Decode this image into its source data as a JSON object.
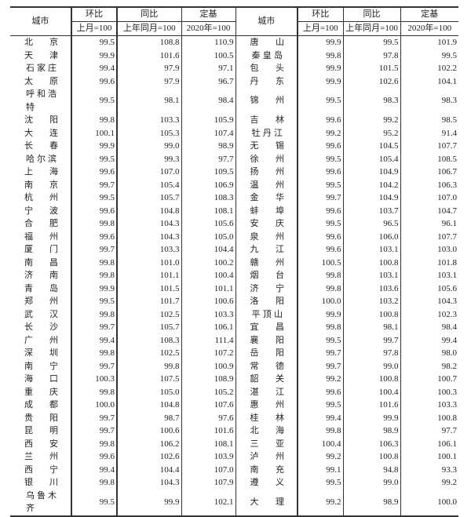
{
  "header": {
    "city": "城市",
    "mom": "环比",
    "yoy": "同比",
    "base": "定基",
    "mom_sub": "上月=100",
    "yoy_sub": "上年同月=100",
    "base_sub": "2020年=100"
  },
  "left_rows": [
    [
      "北京",
      "99.5",
      "108.8",
      "110.9"
    ],
    [
      "天津",
      "99.9",
      "101.6",
      "100.5"
    ],
    [
      "石家庄",
      "99.4",
      "97.9",
      "97.1"
    ],
    [
      "太原",
      "99.6",
      "97.9",
      "96.7"
    ],
    [
      "呼和浩特",
      "99.5",
      "98.1",
      "98.4"
    ],
    [
      "沈阳",
      "99.8",
      "103.3",
      "105.9"
    ],
    [
      "大连",
      "100.1",
      "105.3",
      "107.4"
    ],
    [
      "长春",
      "99.9",
      "99.0",
      "98.9"
    ],
    [
      "哈尔滨",
      "99.5",
      "99.3",
      "97.7"
    ],
    [
      "上海",
      "99.6",
      "107.0",
      "109.5"
    ],
    [
      "南京",
      "99.7",
      "105.4",
      "106.9"
    ],
    [
      "杭州",
      "99.5",
      "105.7",
      "108.3"
    ],
    [
      "宁波",
      "99.6",
      "104.8",
      "108.1"
    ],
    [
      "合肥",
      "99.8",
      "104.3",
      "105.6"
    ],
    [
      "福州",
      "99.6",
      "104.3",
      "105.0"
    ],
    [
      "厦门",
      "99.7",
      "103.3",
      "104.4"
    ],
    [
      "南昌",
      "99.8",
      "101.0",
      "100.2"
    ],
    [
      "济南",
      "99.8",
      "101.1",
      "100.4"
    ],
    [
      "青岛",
      "99.9",
      "101.5",
      "101.1"
    ],
    [
      "郑州",
      "99.5",
      "101.7",
      "100.6"
    ],
    [
      "武汉",
      "99.8",
      "102.5",
      "103.3"
    ],
    [
      "长沙",
      "99.7",
      "105.7",
      "106.1"
    ],
    [
      "广州",
      "99.4",
      "108.3",
      "111.4"
    ],
    [
      "深圳",
      "99.8",
      "102.5",
      "107.2"
    ],
    [
      "南宁",
      "99.7",
      "99.8",
      "100.9"
    ],
    [
      "海口",
      "100.3",
      "107.5",
      "108.9"
    ],
    [
      "重庆",
      "99.8",
      "105.0",
      "105.2"
    ],
    [
      "成都",
      "100.0",
      "104.8",
      "107.6"
    ],
    [
      "贵阳",
      "99.7",
      "98.7",
      "97.6"
    ],
    [
      "昆明",
      "99.7",
      "100.6",
      "101.6"
    ],
    [
      "西安",
      "99.8",
      "106.2",
      "108.1"
    ],
    [
      "兰州",
      "99.6",
      "102.6",
      "103.9"
    ],
    [
      "西宁",
      "99.4",
      "104.4",
      "107.0"
    ],
    [
      "银川",
      "99.8",
      "104.3",
      "107.9"
    ],
    [
      "乌鲁木齐",
      "99.5",
      "99.9",
      "102.1"
    ]
  ],
  "right_rows": [
    [
      "唐山",
      "99.9",
      "99.5",
      "101.9"
    ],
    [
      "秦皇岛",
      "99.8",
      "97.8",
      "99.5"
    ],
    [
      "包头",
      "99.9",
      "101.5",
      "102.2"
    ],
    [
      "丹东",
      "99.9",
      "102.6",
      "104.1"
    ],
    [
      "锦州",
      "99.5",
      "98.3",
      "98.3"
    ],
    [
      "吉林",
      "99.6",
      "99.2",
      "98.5"
    ],
    [
      "牡丹江",
      "99.2",
      "95.2",
      "91.4"
    ],
    [
      "无锡",
      "99.6",
      "104.5",
      "107.7"
    ],
    [
      "徐州",
      "99.5",
      "105.4",
      "108.5"
    ],
    [
      "扬州",
      "99.6",
      "104.9",
      "106.7"
    ],
    [
      "温州",
      "99.5",
      "104.2",
      "106.3"
    ],
    [
      "金华",
      "99.7",
      "104.9",
      "107.0"
    ],
    [
      "蚌埠",
      "99.6",
      "103.7",
      "104.7"
    ],
    [
      "安庆",
      "99.5",
      "96.5",
      "96.1"
    ],
    [
      "泉州",
      "99.6",
      "106.0",
      "107.7"
    ],
    [
      "九江",
      "99.6",
      "103.1",
      "103.0"
    ],
    [
      "赣州",
      "100.5",
      "100.8",
      "101.8"
    ],
    [
      "烟台",
      "99.8",
      "103.1",
      "103.1"
    ],
    [
      "济宁",
      "99.8",
      "103.6",
      "105.6"
    ],
    [
      "洛阳",
      "100.0",
      "103.2",
      "104.3"
    ],
    [
      "平顶山",
      "99.9",
      "100.8",
      "102.3"
    ],
    [
      "宜昌",
      "99.8",
      "98.1",
      "98.4"
    ],
    [
      "襄阳",
      "99.5",
      "99.7",
      "99.4"
    ],
    [
      "岳阳",
      "99.7",
      "97.8",
      "98.0"
    ],
    [
      "常德",
      "99.7",
      "99.0",
      "98.2"
    ],
    [
      "韶关",
      "99.2",
      "100.8",
      "100.7"
    ],
    [
      "湛江",
      "99.6",
      "100.4",
      "100.3"
    ],
    [
      "惠州",
      "99.5",
      "101.6",
      "103.3"
    ],
    [
      "桂林",
      "99.4",
      "99.9",
      "100.8"
    ],
    [
      "北海",
      "99.8",
      "98.9",
      "97.7"
    ],
    [
      "三亚",
      "100.4",
      "106.3",
      "106.1"
    ],
    [
      "泸州",
      "99.2",
      "100.8",
      "100.1"
    ],
    [
      "南充",
      "99.1",
      "94.8",
      "93.3"
    ],
    [
      "遵义",
      "99.5",
      "99.0",
      "99.2"
    ],
    [
      "大理",
      "99.2",
      "98.9",
      "100.0"
    ]
  ]
}
